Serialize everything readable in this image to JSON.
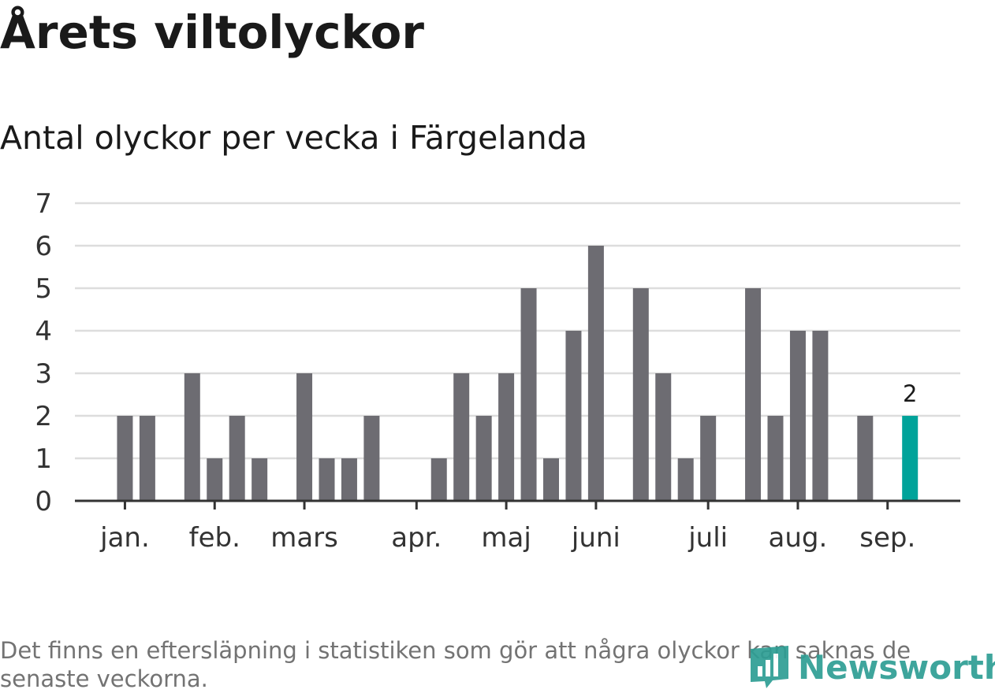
{
  "header": {
    "title": "Årets viltolyckor",
    "subtitle": "Antal olyckor per vecka i Färgelanda"
  },
  "footer": {
    "note": "Det finns en eftersläpning i statistiken som gör att några olyckor kan saknas de senaste veckorna.",
    "logo": "Newsworthy"
  },
  "colors": {
    "bar": "#6d6c72",
    "highlight": "#00a39a",
    "grid": "#dddddd",
    "axis": "#333333",
    "logo": "#2e9e94"
  },
  "chart_data": {
    "type": "bar",
    "title": "Årets viltolyckor",
    "subtitle": "Antal olyckor per vecka i Färgelanda",
    "ylim": [
      0,
      7
    ],
    "yticks": [
      0,
      1,
      2,
      3,
      4,
      5,
      6,
      7
    ],
    "grid": true,
    "x": [
      1,
      2,
      3,
      4,
      5,
      6,
      7,
      8,
      9,
      10,
      11,
      12,
      13,
      14,
      15,
      16,
      17,
      18,
      19,
      20,
      21,
      22,
      23,
      24,
      25,
      26,
      27,
      28,
      29,
      30,
      31,
      32,
      33,
      34,
      35,
      36,
      37
    ],
    "values": [
      0,
      2,
      2,
      0,
      3,
      1,
      2,
      1,
      0,
      3,
      1,
      1,
      2,
      0,
      0,
      1,
      3,
      2,
      3,
      5,
      1,
      4,
      6,
      0,
      5,
      3,
      1,
      2,
      0,
      5,
      2,
      4,
      4,
      0,
      2,
      0,
      2
    ],
    "month_ticks": [
      {
        "label": "jan.",
        "week": 2
      },
      {
        "label": "feb.",
        "week": 6
      },
      {
        "label": "mars",
        "week": 10
      },
      {
        "label": "apr.",
        "week": 15
      },
      {
        "label": "maj",
        "week": 19
      },
      {
        "label": "juni",
        "week": 23
      },
      {
        "label": "juli",
        "week": 28
      },
      {
        "label": "aug.",
        "week": 32
      },
      {
        "label": "sep.",
        "week": 36
      }
    ],
    "highlight": {
      "week": 37,
      "value": 2,
      "label": "2"
    }
  }
}
